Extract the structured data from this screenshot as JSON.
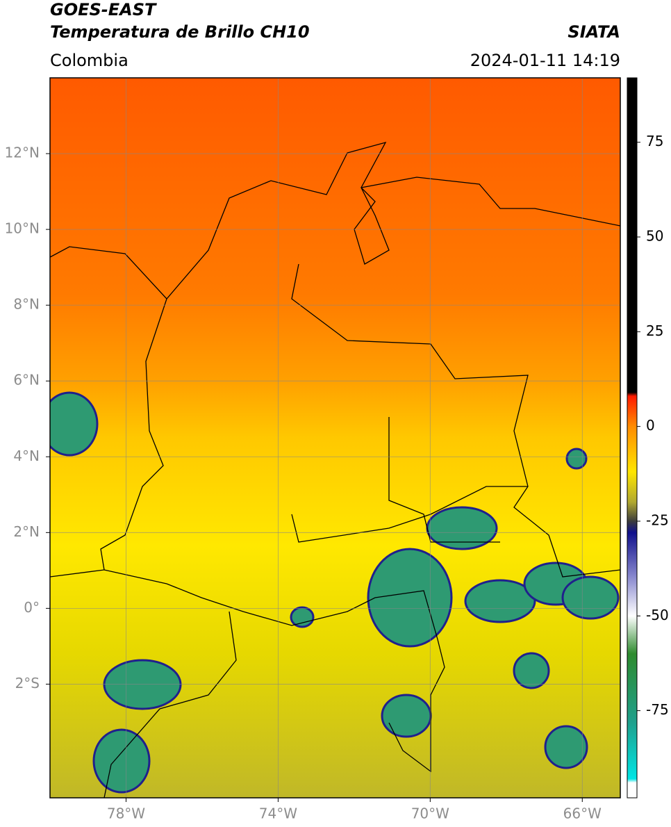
{
  "header": {
    "title": "GOES-EAST",
    "subtitle": "Temperatura de Brillo CH10",
    "source": "SIATA",
    "region": "Colombia",
    "datetime": "2024-01-11 14:19"
  },
  "map": {
    "lonlim": [
      -80,
      -65
    ],
    "latlim": [
      -5,
      14
    ],
    "lonticks": [
      {
        "value": -78,
        "label": "78°W"
      },
      {
        "value": -74,
        "label": "74°W"
      },
      {
        "value": -70,
        "label": "70°W"
      },
      {
        "value": -66,
        "label": "66°W"
      }
    ],
    "latticks": [
      {
        "value": 12,
        "label": "12°N"
      },
      {
        "value": 10,
        "label": "10°N"
      },
      {
        "value": 8,
        "label": "8°N"
      },
      {
        "value": 6,
        "label": "6°N"
      },
      {
        "value": 4,
        "label": "4°N"
      },
      {
        "value": 2,
        "label": "2°N"
      },
      {
        "value": 0,
        "label": "0°"
      },
      {
        "value": -2,
        "label": "2°S"
      }
    ],
    "grid": true
  },
  "colorbar": {
    "lim": [
      -98,
      92
    ],
    "ticks": [
      75,
      50,
      25,
      0,
      -25,
      -50,
      -75
    ],
    "stops": [
      {
        "value": 92,
        "color": "#000000"
      },
      {
        "value": 9,
        "color": "#000000"
      },
      {
        "value": 8,
        "color": "#ff1a00"
      },
      {
        "value": 0,
        "color": "#ff8c00"
      },
      {
        "value": -12,
        "color": "#ffe600"
      },
      {
        "value": -20,
        "color": "#b0a830"
      },
      {
        "value": -25,
        "color": "#3c3c3c"
      },
      {
        "value": -28,
        "color": "#10108c"
      },
      {
        "value": -40,
        "color": "#8c8cd0"
      },
      {
        "value": -50,
        "color": "#ffffff"
      },
      {
        "value": -60,
        "color": "#2e8b2e"
      },
      {
        "value": -78,
        "color": "#1fa08c"
      },
      {
        "value": -93,
        "color": "#00e5e5"
      },
      {
        "value": -94,
        "color": "#ffffff"
      },
      {
        "value": -98,
        "color": "#ffffff"
      }
    ]
  }
}
